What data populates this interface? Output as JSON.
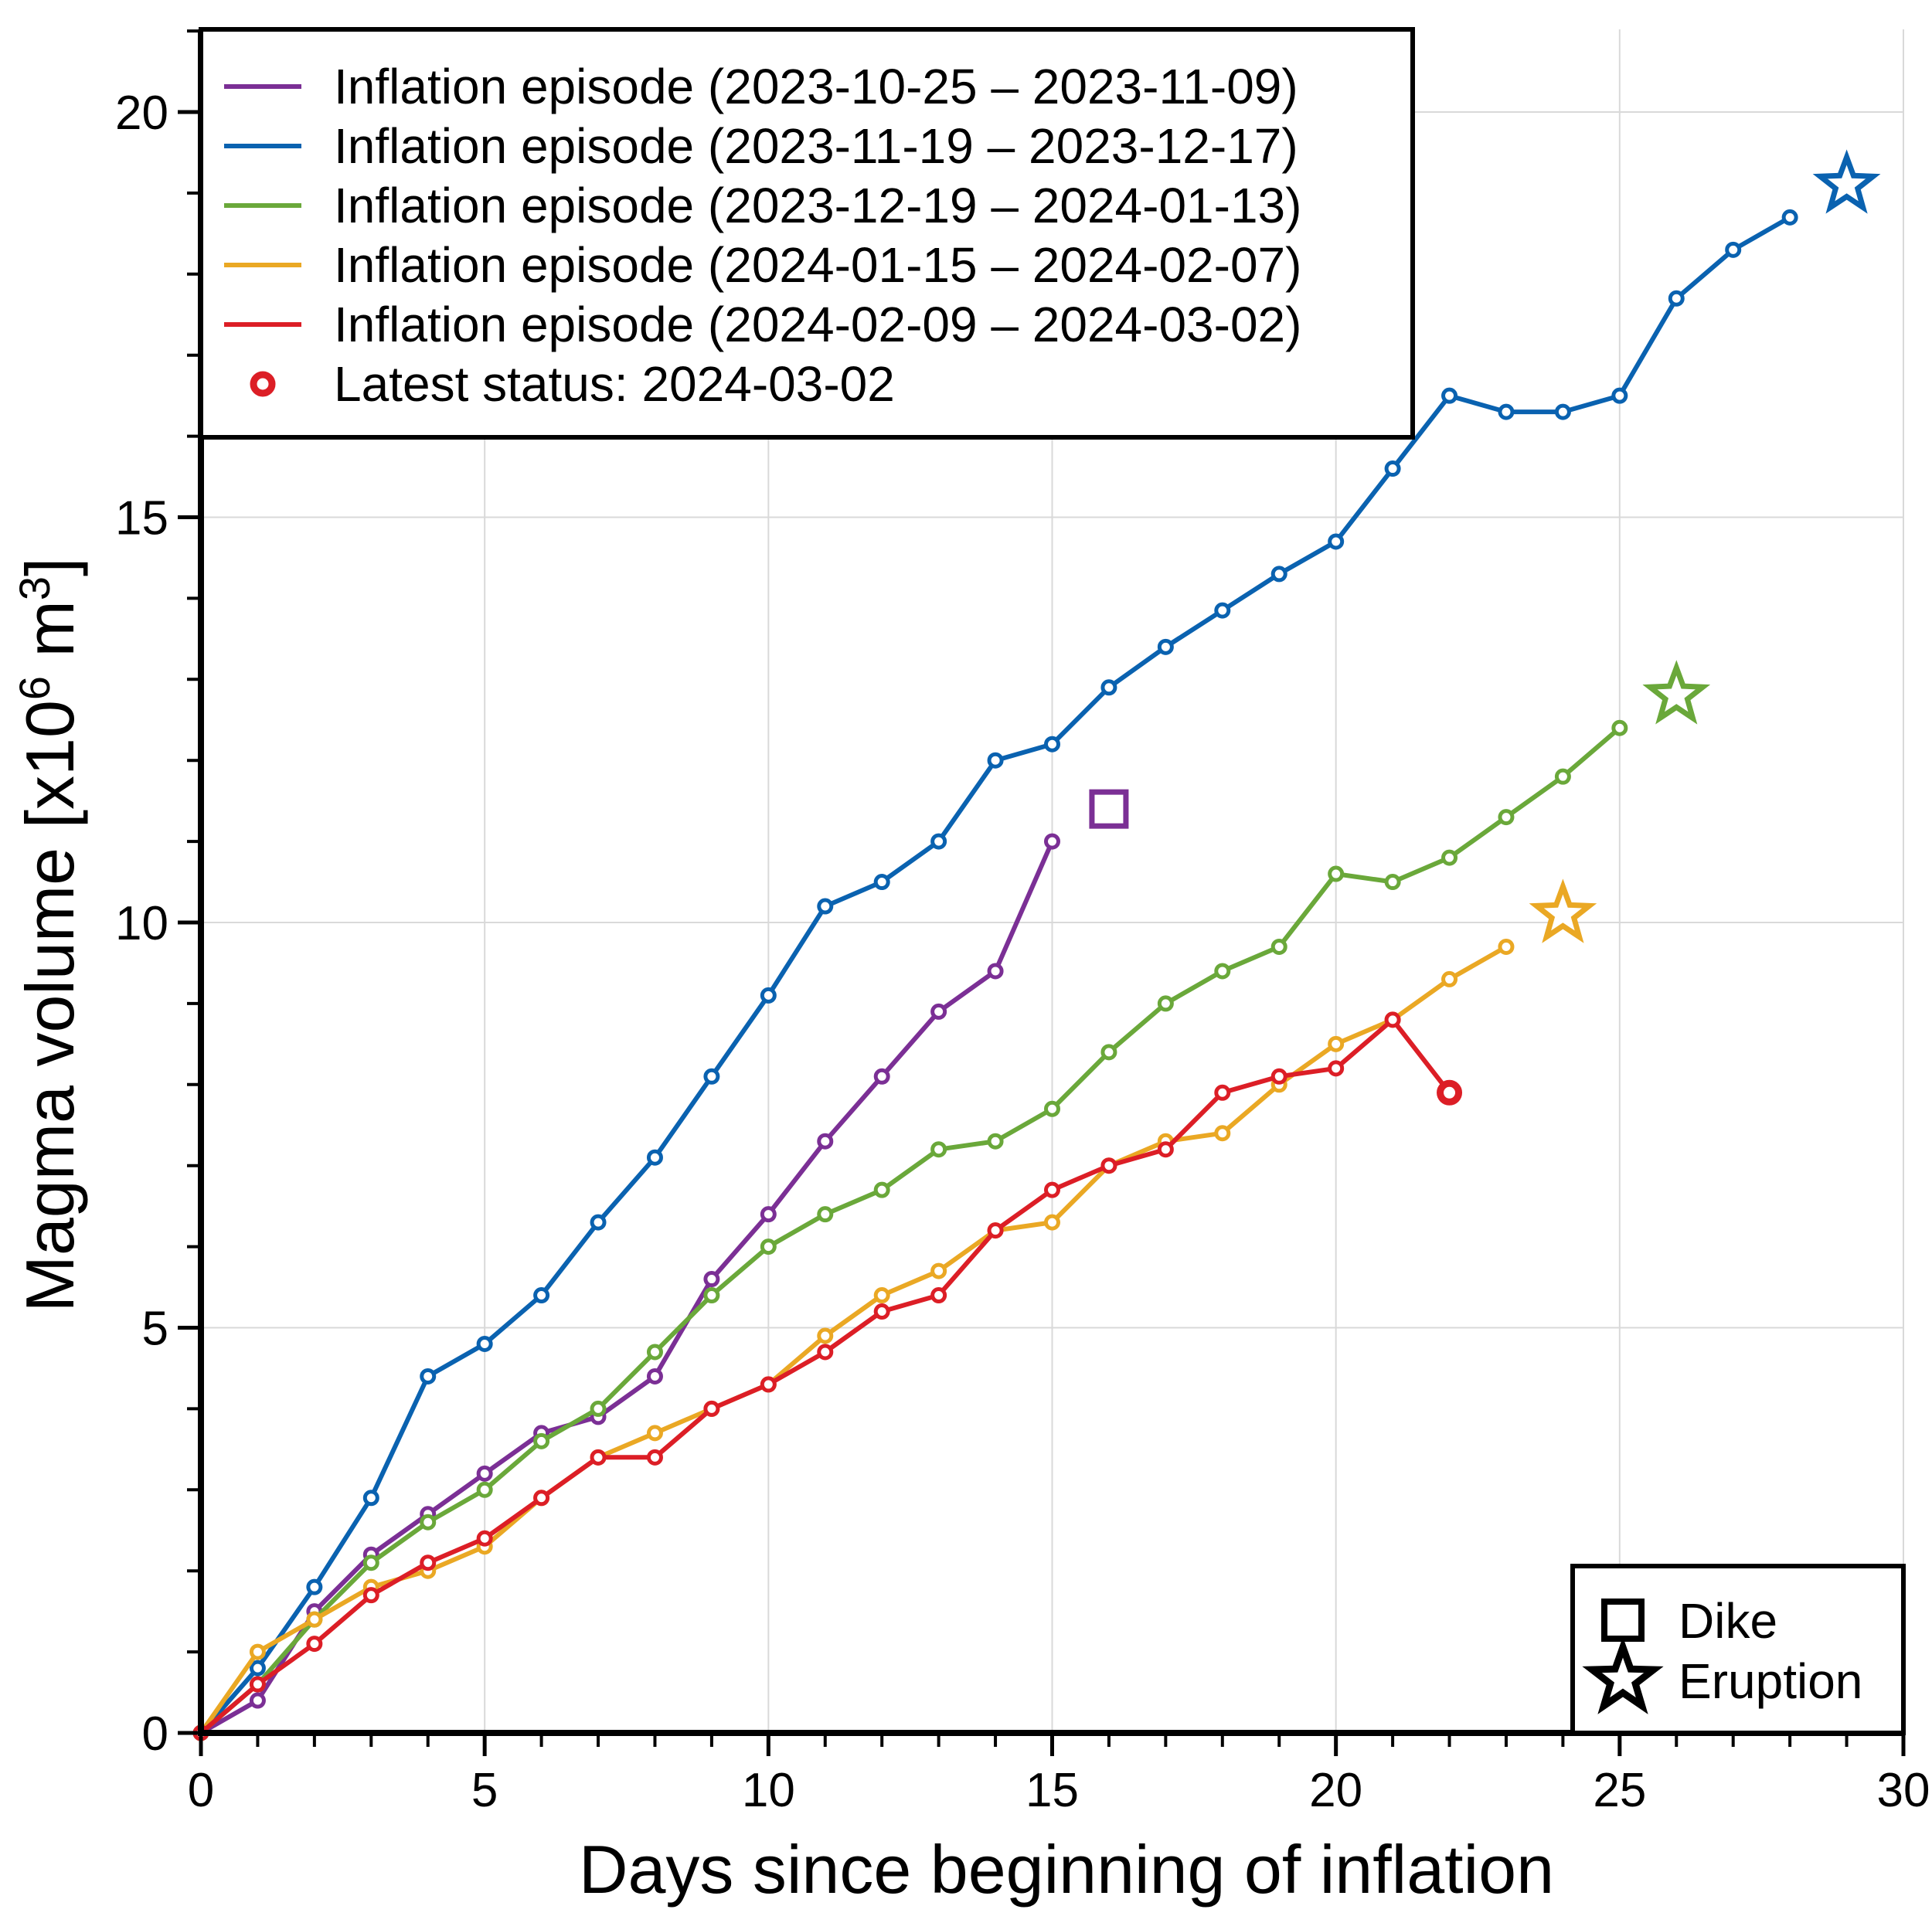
{
  "chart_data": {
    "type": "line",
    "title": "",
    "xlabel": "Days since beginning of inflation",
    "ylabel": "Magma volume [x10",
    "ylabel_sup": "6",
    "ylabel_unit": " m",
    "ylabel_unit_sup": "3",
    "ylabel_close": "]",
    "xlim": [
      0,
      30
    ],
    "ylim": [
      0,
      21
    ],
    "xticks": [
      0,
      5,
      10,
      15,
      20,
      25,
      30
    ],
    "xtick_labels": [
      "0",
      "5",
      "10",
      "15",
      "20",
      "25",
      "30"
    ],
    "yticks": [
      0,
      5,
      10,
      15,
      20
    ],
    "ytick_labels": [
      "0",
      "5",
      "10",
      "15",
      "20"
    ],
    "grid": true,
    "legend_placement": "top-left",
    "series": [
      {
        "name": "Inflation episode (2023-10-25 – 2023-11-09)",
        "color": "#7b2f95",
        "x": [
          0,
          1,
          2,
          3,
          4,
          5,
          6,
          7,
          8,
          9,
          10,
          11,
          12,
          13,
          14,
          15
        ],
        "y": [
          0,
          0.4,
          1.5,
          2.2,
          2.7,
          3.2,
          3.7,
          3.9,
          4.4,
          5.6,
          6.4,
          7.3,
          8.1,
          8.9,
          9.4,
          11.0
        ],
        "end_marker": {
          "type": "dike",
          "x": 16,
          "y": 11.4
        }
      },
      {
        "name": "Inflation episode (2023-11-19 – 2023-12-17)",
        "color": "#0a62b0",
        "x": [
          0,
          1,
          2,
          3,
          4,
          5,
          6,
          7,
          8,
          9,
          10,
          11,
          12,
          13,
          14,
          15,
          16,
          17,
          18,
          19,
          20,
          21,
          22,
          23,
          24,
          25,
          26,
          27,
          28
        ],
        "y": [
          0,
          0.8,
          1.8,
          2.9,
          4.4,
          4.8,
          5.4,
          6.3,
          7.1,
          8.1,
          9.1,
          10.2,
          10.5,
          11.0,
          12.0,
          12.2,
          12.9,
          13.4,
          13.85,
          14.3,
          14.7,
          15.6,
          16.5,
          16.3,
          16.3,
          16.5,
          17.7,
          18.3,
          18.7
        ],
        "end_marker": {
          "type": "eruption",
          "x": 29,
          "y": 19.1
        }
      },
      {
        "name": "Inflation episode (2023-12-19 – 2024-01-13)",
        "color": "#6aa83a",
        "x": [
          0,
          1,
          2,
          3,
          4,
          5,
          6,
          7,
          8,
          9,
          10,
          11,
          12,
          13,
          14,
          15,
          16,
          17,
          18,
          19,
          20,
          21,
          22,
          23,
          24,
          25
        ],
        "y": [
          0,
          0.6,
          1.4,
          2.1,
          2.6,
          3.0,
          3.6,
          4.0,
          4.7,
          5.4,
          6.0,
          6.4,
          6.7,
          7.2,
          7.3,
          7.7,
          8.4,
          9.0,
          9.4,
          9.7,
          10.6,
          10.5,
          10.8,
          11.3,
          11.8,
          12.4
        ],
        "end_marker": {
          "type": "eruption",
          "x": 26,
          "y": 12.8
        }
      },
      {
        "name": "Inflation episode (2024-01-15 – 2024-02-07)",
        "color": "#eaa824",
        "x": [
          0,
          1,
          2,
          3,
          4,
          5,
          6,
          7,
          8,
          9,
          10,
          11,
          12,
          13,
          14,
          15,
          16,
          17,
          18,
          19,
          20,
          21,
          22,
          23
        ],
        "y": [
          0,
          1.0,
          1.4,
          1.8,
          2.0,
          2.3,
          2.9,
          3.4,
          3.7,
          4.0,
          4.3,
          4.9,
          5.4,
          5.7,
          6.2,
          6.3,
          7.0,
          7.3,
          7.4,
          8.0,
          8.5,
          8.8,
          9.3,
          9.7
        ],
        "end_marker": {
          "type": "eruption",
          "x": 24,
          "y": 10.1
        }
      },
      {
        "name": "Inflation episode (2024-02-09 – 2024-03-02)",
        "color": "#dc1e26",
        "x": [
          0,
          1,
          2,
          3,
          4,
          5,
          6,
          7,
          8,
          9,
          10,
          11,
          12,
          13,
          14,
          15,
          16,
          17,
          18,
          19,
          20,
          21,
          22
        ],
        "y": [
          0,
          0.6,
          1.1,
          1.7,
          2.1,
          2.4,
          2.9,
          3.4,
          3.4,
          4.0,
          4.3,
          4.7,
          5.2,
          5.4,
          6.2,
          6.7,
          7.0,
          7.2,
          7.9,
          8.1,
          8.2,
          8.8,
          7.9
        ],
        "latest": {
          "x": 22,
          "y": 7.9
        }
      }
    ],
    "legend": {
      "entries": [
        "Inflation episode (2023-10-25 – 2023-11-09)",
        "Inflation episode (2023-11-19 – 2023-12-17)",
        "Inflation episode (2023-12-19 – 2024-01-13)",
        "Inflation episode (2024-01-15 – 2024-02-07)",
        "Inflation episode (2024-02-09 – 2024-03-02)"
      ],
      "latest_status": "Latest status: 2024-03-02",
      "latest_color": "#dc1e26"
    },
    "marker_legend": {
      "placement": "bottom-right",
      "dike_label": "Dike",
      "eruption_label": "Eruption"
    }
  }
}
